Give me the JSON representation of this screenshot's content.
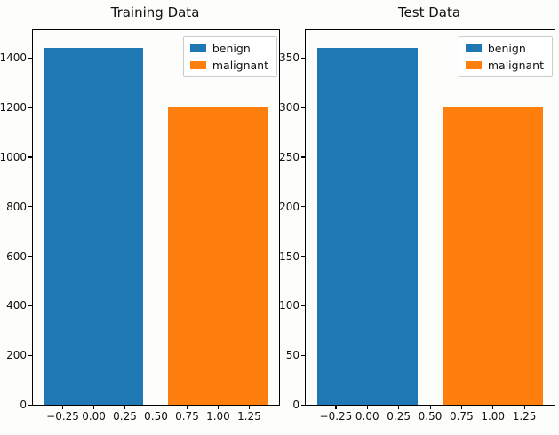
{
  "figure": {
    "background": "#fdfefb",
    "spine_color": "#000000",
    "text_color": "#111111"
  },
  "chart_data": [
    {
      "type": "bar",
      "title": "Training Data",
      "categories": [
        "benign",
        "malignant"
      ],
      "x": [
        0,
        1
      ],
      "values": [
        1440,
        1200
      ],
      "bar_width": 0.8,
      "colors": [
        "#1f77b4",
        "#ff7f0e"
      ],
      "legend": {
        "entries": [
          "benign",
          "malignant"
        ],
        "position": "upper right"
      },
      "xlim": [
        -0.49,
        1.49
      ],
      "ylim": [
        0,
        1512
      ],
      "yticks": [
        0,
        200,
        400,
        600,
        800,
        1000,
        1200,
        1400
      ],
      "xticks": [
        -0.25,
        0.0,
        0.25,
        0.5,
        0.75,
        1.0,
        1.25
      ],
      "xtick_labels": [
        "−0.25",
        "0.00",
        "0.25",
        "0.50",
        "0.75",
        "1.00",
        "1.25"
      ],
      "xlabel": "",
      "ylabel": "",
      "grid": false
    },
    {
      "type": "bar",
      "title": "Test Data",
      "categories": [
        "benign",
        "malignant"
      ],
      "x": [
        0,
        1
      ],
      "values": [
        360,
        300
      ],
      "bar_width": 0.8,
      "colors": [
        "#1f77b4",
        "#ff7f0e"
      ],
      "legend": {
        "entries": [
          "benign",
          "malignant"
        ],
        "position": "upper right"
      },
      "xlim": [
        -0.49,
        1.49
      ],
      "ylim": [
        0,
        378
      ],
      "yticks": [
        0,
        50,
        100,
        150,
        200,
        250,
        300,
        350
      ],
      "xticks": [
        -0.25,
        0.0,
        0.25,
        0.5,
        0.75,
        1.0,
        1.25
      ],
      "xtick_labels": [
        "−0.25",
        "0.00",
        "0.25",
        "0.50",
        "0.75",
        "1.00",
        "1.25"
      ],
      "xlabel": "",
      "ylabel": "",
      "grid": false
    }
  ]
}
